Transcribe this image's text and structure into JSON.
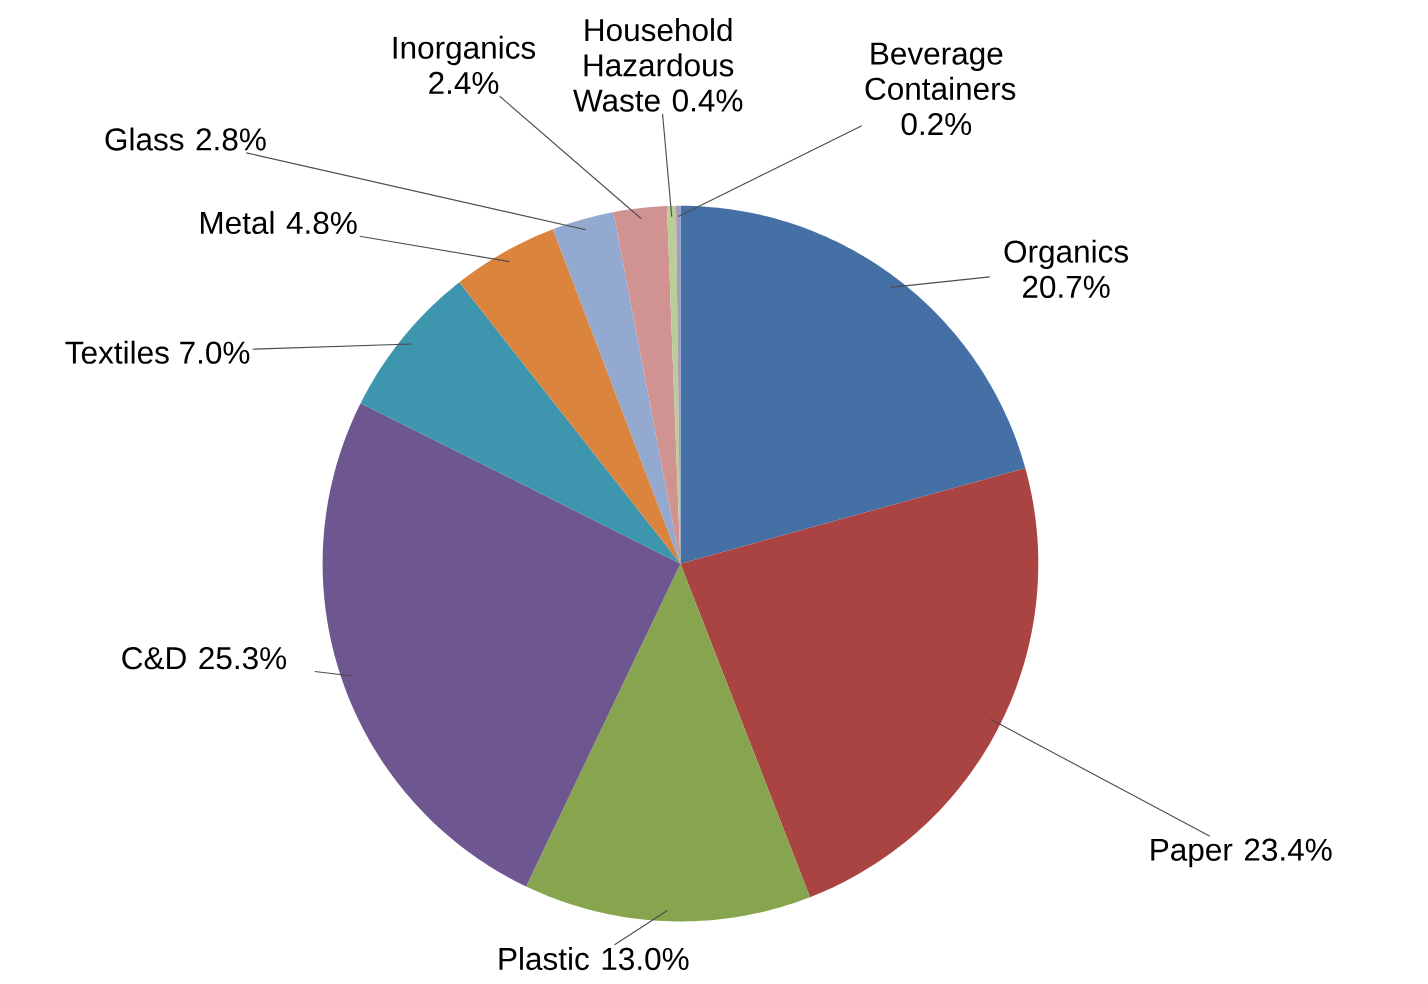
{
  "chart_data": {
    "type": "pie",
    "categories": [
      "Organics",
      "Paper",
      "Plastic",
      "C&D",
      "Textiles",
      "Metal",
      "Glass",
      "Inorganics",
      "Household Hazardous Waste",
      "Beverage Containers"
    ],
    "values": [
      20.7,
      23.4,
      13.0,
      25.3,
      7.0,
      4.8,
      2.8,
      2.4,
      0.4,
      0.2
    ],
    "value_labels": [
      "20.7%",
      "23.4%",
      "13.0%",
      "25.3%",
      "7.0%",
      "4.8%",
      "2.8%",
      "2.4%",
      "0.4%",
      "0.2%"
    ],
    "colors": [
      "#4470a6",
      "#a94442",
      "#86a54e",
      "#6e5690",
      "#3d96ae",
      "#db843d",
      "#93a9cf",
      "#d19392",
      "#b9cd96",
      "#a99bbd"
    ]
  }
}
